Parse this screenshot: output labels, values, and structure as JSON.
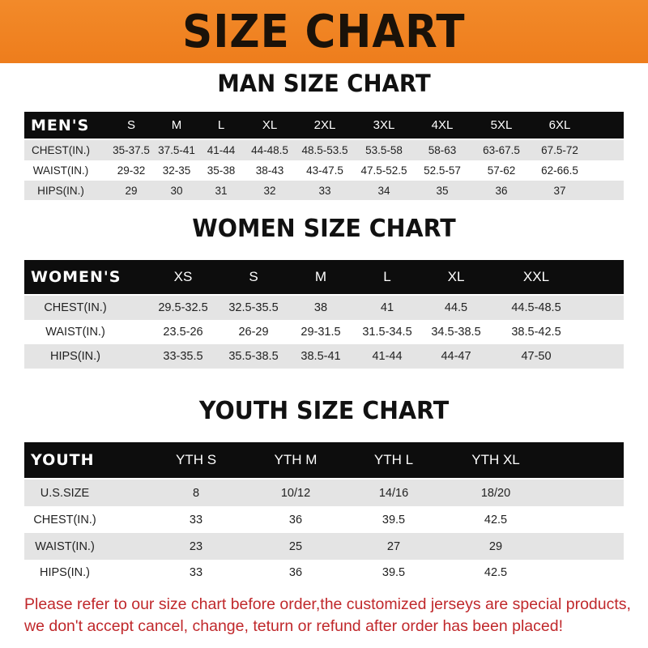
{
  "title": "SIZE CHART",
  "men": {
    "heading": "MAN SIZE CHART",
    "header": [
      "MEN'S",
      "S",
      "M",
      "L",
      "XL",
      "2XL",
      "3XL",
      "4XL",
      "5XL",
      "6XL"
    ],
    "rows": [
      [
        "CHEST(IN.)",
        "35-37.5",
        "37.5-41",
        "41-44",
        "44-48.5",
        "48.5-53.5",
        "53.5-58",
        "58-63",
        "63-67.5",
        "67.5-72"
      ],
      [
        "WAIST(IN.)",
        "29-32",
        "32-35",
        "35-38",
        "38-43",
        "43-47.5",
        "47.5-52.5",
        "52.5-57",
        "57-62",
        "62-66.5"
      ],
      [
        "HIPS(IN.)",
        "29",
        "30",
        "31",
        "32",
        "33",
        "34",
        "35",
        "36",
        "37"
      ]
    ]
  },
  "women": {
    "heading": "WOMEN SIZE CHART",
    "header": [
      "WOMEN'S",
      "XS",
      "S",
      "M",
      "L",
      "XL",
      "XXL"
    ],
    "rows": [
      [
        "CHEST(IN.)",
        "29.5-32.5",
        "32.5-35.5",
        "38",
        "41",
        "44.5",
        "44.5-48.5"
      ],
      [
        "WAIST(IN.)",
        "23.5-26",
        "26-29",
        "29-31.5",
        "31.5-34.5",
        "34.5-38.5",
        "38.5-42.5"
      ],
      [
        "HIPS(IN.)",
        "33-35.5",
        "35.5-38.5",
        "38.5-41",
        "41-44",
        "44-47",
        "47-50"
      ]
    ]
  },
  "youth": {
    "heading": "YOUTH SIZE CHART",
    "header": [
      "YOUTH",
      "YTH S",
      "YTH M",
      "YTH L",
      "YTH XL"
    ],
    "rows": [
      [
        "U.S.SIZE",
        "8",
        "10/12",
        "14/16",
        "18/20"
      ],
      [
        "CHEST(IN.)",
        "33",
        "36",
        "39.5",
        "42.5"
      ],
      [
        "WAIST(IN.)",
        "23",
        "25",
        "27",
        "29"
      ],
      [
        "HIPS(IN.)",
        "33",
        "36",
        "39.5",
        "42.5"
      ]
    ]
  },
  "notice": [
    "Please refer to our size chart before order,the customized jerseys are special products,",
    "we don't accept cancel, change, teturn or refund after order has been placed!"
  ],
  "colors": {
    "banner": "#ee7d1c",
    "header_row": "#0d0d0d",
    "alt_row": "#e4e4e4",
    "notice": "#c0282b"
  }
}
